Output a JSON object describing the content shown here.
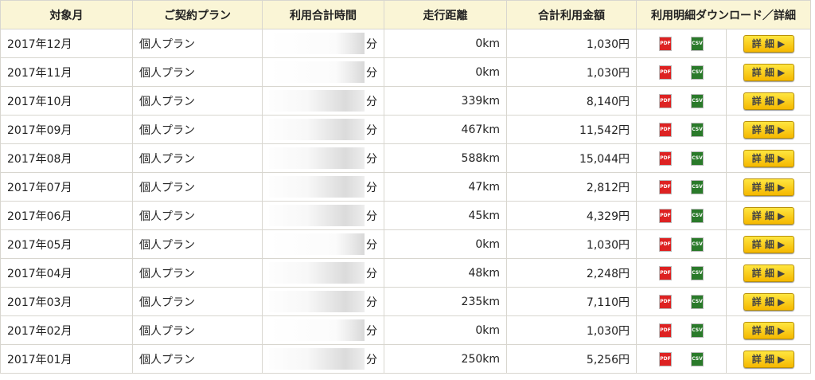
{
  "headers": [
    "対象月",
    "ご契約プラン",
    "利用合計時間",
    "走行距離",
    "合計利用金額",
    "利用明細ダウンロード／詳細"
  ],
  "minute_unit": "分",
  "pdf_icon_label": "PDF",
  "csv_icon_label": "CSV",
  "detail_button_label": "詳 細 ▶",
  "rows": [
    {
      "month": "2017年12月",
      "plan": "個人プラン",
      "distance": "0km",
      "amount": "1,030円"
    },
    {
      "month": "2017年11月",
      "plan": "個人プラン",
      "distance": "0km",
      "amount": "1,030円"
    },
    {
      "month": "2017年10月",
      "plan": "個人プラン",
      "distance": "339km",
      "amount": "8,140円"
    },
    {
      "month": "2017年09月",
      "plan": "個人プラン",
      "distance": "467km",
      "amount": "11,542円"
    },
    {
      "month": "2017年08月",
      "plan": "個人プラン",
      "distance": "588km",
      "amount": "15,044円"
    },
    {
      "month": "2017年07月",
      "plan": "個人プラン",
      "distance": "47km",
      "amount": "2,812円"
    },
    {
      "month": "2017年06月",
      "plan": "個人プラン",
      "distance": "45km",
      "amount": "4,329円"
    },
    {
      "month": "2017年05月",
      "plan": "個人プラン",
      "distance": "0km",
      "amount": "1,030円"
    },
    {
      "month": "2017年04月",
      "plan": "個人プラン",
      "distance": "48km",
      "amount": "2,248円"
    },
    {
      "month": "2017年03月",
      "plan": "個人プラン",
      "distance": "235km",
      "amount": "7,110円"
    },
    {
      "month": "2017年02月",
      "plan": "個人プラン",
      "distance": "0km",
      "amount": "1,030円"
    },
    {
      "month": "2017年01月",
      "plan": "個人プラン",
      "distance": "250km",
      "amount": "5,256円"
    }
  ]
}
